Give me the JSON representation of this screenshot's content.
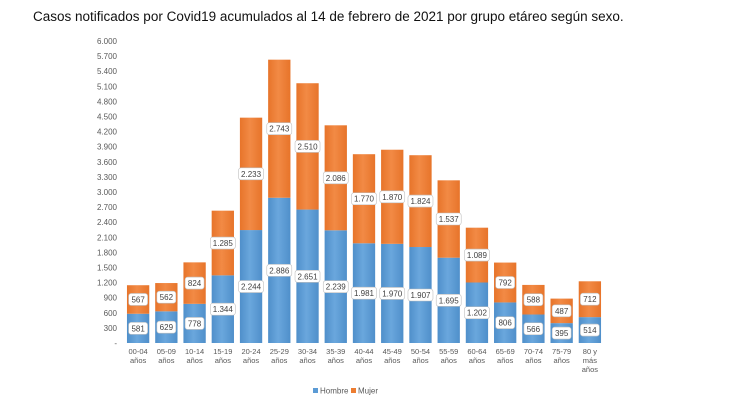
{
  "chart_data": {
    "type": "bar",
    "stacked": true,
    "title": "Casos notificados por Covid19 acumulados al 14 de febrero de 2021 por grupo etáreo según sexo.",
    "categories": [
      [
        "00-04",
        "años"
      ],
      [
        "05-09",
        "años"
      ],
      [
        "10-14",
        "años"
      ],
      [
        "15-19",
        "años"
      ],
      [
        "20-24",
        "años"
      ],
      [
        "25-29",
        "años"
      ],
      [
        "30-34",
        "años"
      ],
      [
        "35-39",
        "años"
      ],
      [
        "40-44",
        "años"
      ],
      [
        "45-49",
        "años"
      ],
      [
        "50-54",
        "años"
      ],
      [
        "55-59",
        "años"
      ],
      [
        "60-64",
        "años"
      ],
      [
        "65-69",
        "años"
      ],
      [
        "70-74",
        "años"
      ],
      [
        "75-79",
        "años"
      ],
      [
        "80 y",
        "más",
        "años"
      ]
    ],
    "series": [
      {
        "name": "Hombre",
        "color": "#5b9bd5",
        "values": [
          581,
          629,
          778,
          1344,
          2244,
          2886,
          2651,
          2239,
          1981,
          1970,
          1907,
          1695,
          1202,
          806,
          566,
          395,
          514
        ],
        "labels": [
          "581",
          "629",
          "778",
          "1.344",
          "2.244",
          "2.886",
          "2.651",
          "2.239",
          "1.981",
          "1.970",
          "1.907",
          "1.695",
          "1.202",
          "806",
          "566",
          "395",
          "514"
        ]
      },
      {
        "name": "Mujer",
        "color": "#ed7d31",
        "values": [
          567,
          562,
          824,
          1285,
          2233,
          2743,
          2510,
          2086,
          1770,
          1870,
          1824,
          1537,
          1089,
          792,
          588,
          487,
          712
        ],
        "labels": [
          "567",
          "562",
          "824",
          "1.285",
          "2.233",
          "2.743",
          "2.510",
          "2.086",
          "1.770",
          "1.870",
          "1.824",
          "1.537",
          "1.089",
          "792",
          "588",
          "487",
          "712"
        ]
      }
    ],
    "ylim": [
      0,
      6000
    ],
    "yticks": [
      0,
      300,
      600,
      900,
      1200,
      1500,
      1800,
      2100,
      2400,
      2700,
      3000,
      3300,
      3600,
      3900,
      4200,
      4500,
      4800,
      5100,
      5400,
      5700,
      6000
    ],
    "ytick_labels": [
      "-",
      "300",
      "600",
      "900",
      "1.200",
      "1.500",
      "1.800",
      "2.100",
      "2.400",
      "2.700",
      "3.000",
      "3.300",
      "3.600",
      "3.900",
      "4.200",
      "4.500",
      "4.800",
      "5.100",
      "5.400",
      "5.700",
      "6.000"
    ],
    "grid": false,
    "legend": "bottom"
  }
}
